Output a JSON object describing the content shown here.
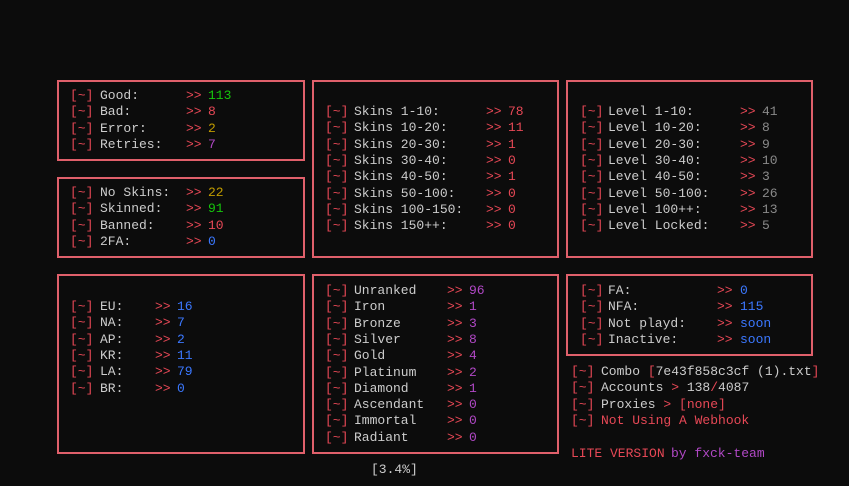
{
  "prefix": "[~]",
  "arrow": ">>",
  "panels": [
    {
      "rows": [
        {
          "label": "Good:",
          "value": 113,
          "color": "#16c60c"
        },
        {
          "label": "Bad:",
          "value": 8,
          "color": "#e74856"
        },
        {
          "label": "Error:",
          "value": 2,
          "color": "#c19c00"
        },
        {
          "label": "Retries:",
          "value": 7,
          "color": "#b148c6"
        }
      ]
    },
    {
      "rows": [
        {
          "label": "No Skins:",
          "value": 22,
          "color": "#c19c00"
        },
        {
          "label": "Skinned:",
          "value": 91,
          "color": "#16c60c"
        },
        {
          "label": "Banned:",
          "value": 10,
          "color": "#e74856"
        },
        {
          "label": "2FA:",
          "value": 0,
          "color": "#3b78ff"
        }
      ]
    },
    {
      "rows": [
        {
          "label": "Skins 1-10:",
          "value": 78,
          "color": "#e74856"
        },
        {
          "label": "Skins 10-20:",
          "value": 11,
          "color": "#e74856"
        },
        {
          "label": "Skins 20-30:",
          "value": 1,
          "color": "#e74856"
        },
        {
          "label": "Skins 30-40:",
          "value": 0,
          "color": "#e74856"
        },
        {
          "label": "Skins 40-50:",
          "value": 1,
          "color": "#e74856"
        },
        {
          "label": "Skins 50-100:",
          "value": 0,
          "color": "#e74856"
        },
        {
          "label": "Skins 100-150:",
          "value": 0,
          "color": "#e74856"
        },
        {
          "label": "Skins 150++:",
          "value": 0,
          "color": "#e74856"
        }
      ]
    },
    {
      "rows": [
        {
          "label": "Level 1-10:",
          "value": 41,
          "color": "#8a8a8a"
        },
        {
          "label": "Level 10-20:",
          "value": 8,
          "color": "#8a8a8a"
        },
        {
          "label": "Level 20-30:",
          "value": 9,
          "color": "#8a8a8a"
        },
        {
          "label": "Level 30-40:",
          "value": 10,
          "color": "#8a8a8a"
        },
        {
          "label": "Level 40-50:",
          "value": 3,
          "color": "#8a8a8a"
        },
        {
          "label": "Level 50-100:",
          "value": 26,
          "color": "#8a8a8a"
        },
        {
          "label": "Level 100++:",
          "value": 13,
          "color": "#8a8a8a"
        },
        {
          "label": "Level Locked:",
          "value": 5,
          "color": "#8a8a8a"
        }
      ]
    },
    {
      "rows": [
        {
          "label": "EU:",
          "value": 16,
          "color": "#3b78ff"
        },
        {
          "label": "NA:",
          "value": 7,
          "color": "#3b78ff"
        },
        {
          "label": "AP:",
          "value": 2,
          "color": "#3b78ff"
        },
        {
          "label": "KR:",
          "value": 11,
          "color": "#3b78ff"
        },
        {
          "label": "LA:",
          "value": 79,
          "color": "#3b78ff"
        },
        {
          "label": "BR:",
          "value": 0,
          "color": "#3b78ff"
        }
      ]
    },
    {
      "rows": [
        {
          "label": "Unranked",
          "value": 96,
          "color": "#b148c6"
        },
        {
          "label": "Iron",
          "value": 1,
          "color": "#b148c6"
        },
        {
          "label": "Bronze",
          "value": 3,
          "color": "#b148c6"
        },
        {
          "label": "Silver",
          "value": 8,
          "color": "#b148c6"
        },
        {
          "label": "Gold",
          "value": 4,
          "color": "#b148c6"
        },
        {
          "label": "Platinum",
          "value": 2,
          "color": "#b148c6"
        },
        {
          "label": "Diamond",
          "value": 1,
          "color": "#b148c6"
        },
        {
          "label": "Ascendant",
          "value": 0,
          "color": "#b148c6"
        },
        {
          "label": "Immortal",
          "value": 0,
          "color": "#b148c6"
        },
        {
          "label": "Radiant",
          "value": 0,
          "color": "#b148c6"
        }
      ]
    },
    {
      "rows": [
        {
          "label": "FA:",
          "value": 0,
          "color": "#3b78ff"
        },
        {
          "label": "NFA:",
          "value": 115,
          "color": "#3b78ff"
        },
        {
          "label": "Not playd:",
          "value": "soon",
          "color": "#3b78ff"
        },
        {
          "label": "Inactive:",
          "value": "soon",
          "color": "#3b78ff"
        }
      ]
    }
  ],
  "footer": [
    [
      {
        "text": "Combo",
        "color": "#cccccc"
      },
      {
        "text": "[",
        "color": "#e74856"
      },
      {
        "text": "7e43f858c3cf (1).txt",
        "color": "#cccccc"
      },
      {
        "text": "]",
        "color": "#e74856"
      }
    ],
    [
      {
        "text": "Accounts",
        "color": "#cccccc"
      },
      {
        "text": ">",
        "color": "#e74856"
      },
      {
        "text": "138",
        "color": "#cccccc"
      },
      {
        "text": "/",
        "color": "#e74856"
      },
      {
        "text": "4087",
        "color": "#cccccc"
      }
    ],
    [
      {
        "text": "Proxies",
        "color": "#cccccc"
      },
      {
        "text": ">",
        "color": "#e74856"
      },
      {
        "text": "[none]",
        "color": "#e74856"
      }
    ],
    [
      {
        "text": "Not Using A Webhook",
        "color": "#e74856"
      }
    ]
  ],
  "version": {
    "text": "LITE VERSION",
    "by": "by fxck-team"
  },
  "progress": "[3.4%]"
}
